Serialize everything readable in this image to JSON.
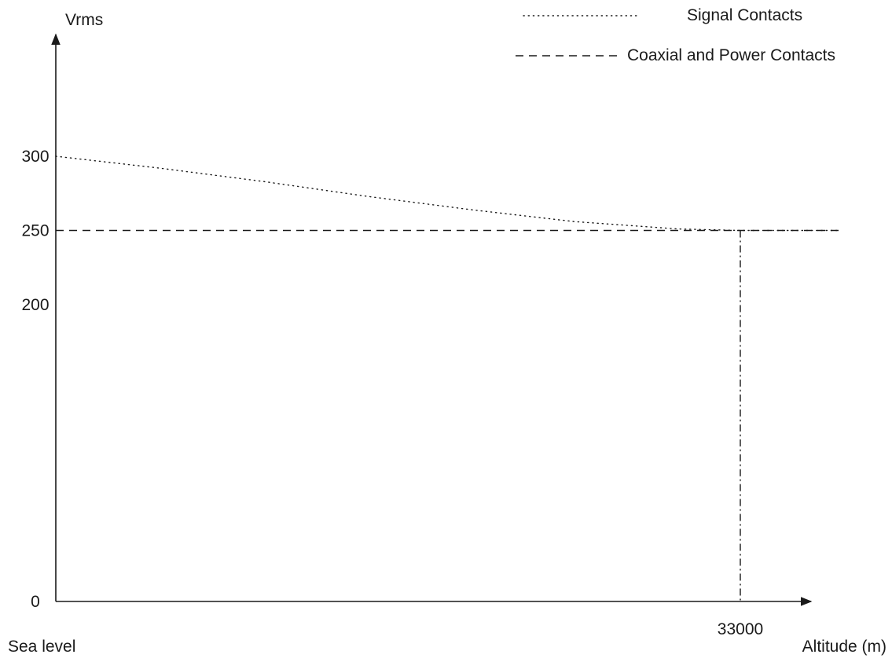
{
  "chart_data": {
    "type": "line",
    "ylabel": "Vrms",
    "xlabel": "Altitude (m)",
    "origin_label": "Sea level",
    "ylim": [
      0,
      300
    ],
    "xlim": [
      0,
      33000
    ],
    "y_ticks": [
      {
        "value": 0,
        "label": "0"
      },
      {
        "value": 200,
        "label": "200"
      },
      {
        "value": 250,
        "label": "250"
      },
      {
        "value": 300,
        "label": "300"
      }
    ],
    "x_ticks": [
      {
        "value": 33000,
        "label": "33000"
      }
    ],
    "series": [
      {
        "name": "Signal Contacts",
        "style": "dotted",
        "x": [
          0,
          5000,
          10000,
          15000,
          20000,
          25000,
          30000,
          33000
        ],
        "y": [
          300,
          292,
          283,
          273,
          264,
          256,
          251,
          250
        ]
      },
      {
        "name": "Coaxial and Power Contacts",
        "style": "dashed",
        "x": [
          0,
          33000
        ],
        "y": [
          250,
          250
        ]
      }
    ],
    "legend": {
      "position": "top-right",
      "entries": [
        {
          "label": "Signal Contacts",
          "style": "dotted"
        },
        {
          "label": "Coaxial and Power Contacts",
          "style": "dashed"
        }
      ]
    },
    "reference_lines": [
      {
        "orientation": "vertical",
        "x": 33000,
        "y_from": 0,
        "y_to": 250,
        "style": "dash-dot"
      }
    ],
    "grid": false,
    "colors": {
      "ink": "#1a1a1a",
      "background": "#ffffff"
    }
  }
}
